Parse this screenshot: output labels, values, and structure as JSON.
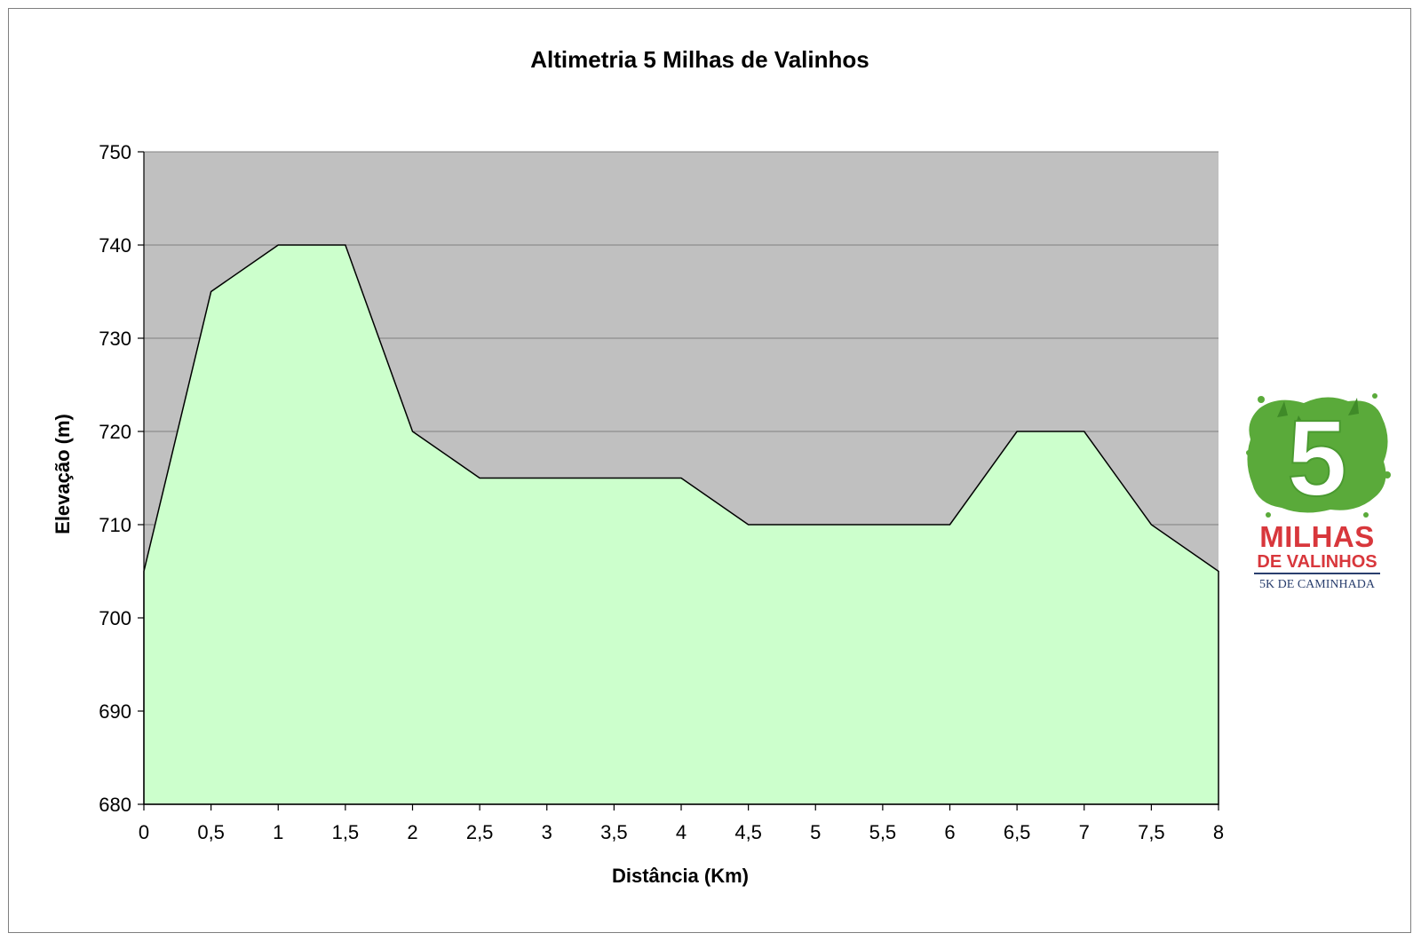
{
  "chart_data": {
    "type": "area",
    "title": "Altimetria 5 Milhas de Valinhos",
    "xlabel": "Distância (Km)",
    "ylabel": "Elevação (m)",
    "x": [
      0,
      0.5,
      1,
      1.5,
      2,
      2.5,
      3,
      3.5,
      4,
      4.5,
      5,
      5.5,
      6,
      6.5,
      7,
      7.5,
      8
    ],
    "x_tick_labels": [
      "0",
      "0,5",
      "1",
      "1,5",
      "2",
      "2,5",
      "3",
      "3,5",
      "4",
      "4,5",
      "5",
      "5,5",
      "6",
      "6,5",
      "7",
      "7,5",
      "8"
    ],
    "y": [
      705,
      735,
      740,
      740,
      720,
      715,
      715,
      715,
      715,
      710,
      710,
      710,
      710,
      720,
      720,
      710,
      705
    ],
    "ylim": [
      680,
      750
    ],
    "y_ticks": [
      680,
      690,
      700,
      710,
      720,
      730,
      740,
      750
    ],
    "xlim": [
      0,
      8
    ],
    "grid": "horizontal",
    "legend": "none",
    "colors": {
      "plot_background": "#c0c0c0",
      "area_fill": "#ccffcc",
      "line": "#000000",
      "gridline": "#808080"
    }
  },
  "logo": {
    "numeral": "5",
    "line1": "MILHAS",
    "line2": "DE VALINHOS",
    "line3": "5K DE CAMINHADA",
    "colors": {
      "green": "#5aaa3a",
      "red": "#d8373c",
      "navy": "#2a3f6e"
    }
  }
}
